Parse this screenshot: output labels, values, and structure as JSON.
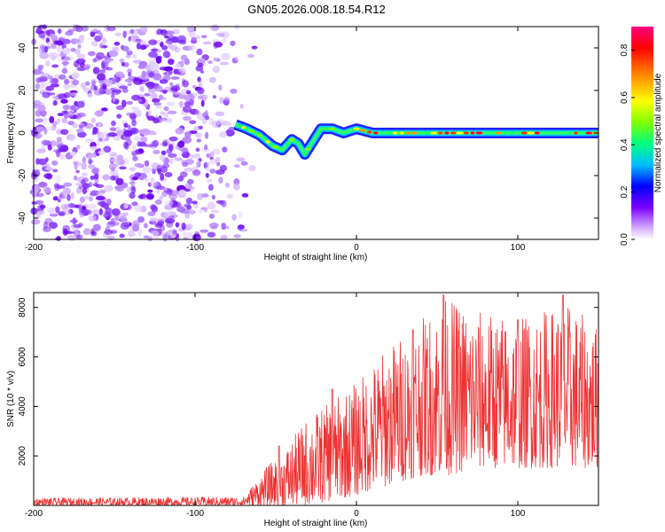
{
  "title": "GN05.2026.008.18.54.R12",
  "chart_data": [
    {
      "type": "heatmap",
      "title": "GN05.2026.008.18.54.R12",
      "xlabel": "Height of straight line (km)",
      "ylabel": "Frequency (Hz)",
      "xlim": [
        -200,
        150
      ],
      "ylim": [
        -50,
        50
      ],
      "x_ticks": [
        -200,
        -100,
        0,
        100
      ],
      "x_tick_labels": [
        "-200",
        "-100",
        "0",
        "100"
      ],
      "y_ticks": [
        -40,
        -20,
        0,
        20,
        40
      ],
      "y_tick_labels": [
        "-40",
        "-20",
        "0",
        "20",
        "40"
      ],
      "colorbar": {
        "label": "Normalized spectral amplitude",
        "range": [
          0.0,
          0.9
        ],
        "ticks": [
          0.0,
          0.2,
          0.4,
          0.6,
          0.8
        ],
        "tick_labels": [
          "0.0",
          "0.2",
          "0.4",
          "0.6",
          "0.8"
        ],
        "colors": [
          "#ffffff",
          "#d9b3ff",
          "#7a00ff",
          "#0000ff",
          "#00bfff",
          "#00ff80",
          "#80ff00",
          "#ffff00",
          "#ff8000",
          "#ff0000",
          "#ff0080"
        ]
      },
      "noise_region_x": [
        -200,
        -70
      ],
      "ridge": [
        {
          "x": -75,
          "f": 4
        },
        {
          "x": -68,
          "f": 2
        },
        {
          "x": -60,
          "f": -1
        },
        {
          "x": -52,
          "f": -6
        },
        {
          "x": -46,
          "f": -8
        },
        {
          "x": -40,
          "f": -3
        },
        {
          "x": -36,
          "f": -5
        },
        {
          "x": -32,
          "f": -10
        },
        {
          "x": -27,
          "f": -4
        },
        {
          "x": -22,
          "f": 2
        },
        {
          "x": -15,
          "f": 2
        },
        {
          "x": -8,
          "f": 0
        },
        {
          "x": 0,
          "f": 2
        },
        {
          "x": 10,
          "f": 0
        },
        {
          "x": 30,
          "f": 0
        },
        {
          "x": 60,
          "f": 0
        },
        {
          "x": 100,
          "f": 0
        },
        {
          "x": 150,
          "f": 0
        }
      ]
    },
    {
      "type": "line",
      "xlabel": "Height of straight line (km)",
      "ylabel": "SNR (10 * v/v)",
      "xlim": [
        -200,
        150
      ],
      "ylim": [
        0,
        8600
      ],
      "x_ticks": [
        -200,
        -100,
        0,
        100
      ],
      "x_tick_labels": [
        "-200",
        "-100",
        "0",
        "100"
      ],
      "y_ticks": [
        2000,
        4000,
        6000,
        8000
      ],
      "y_tick_labels": [
        "2000",
        "4000",
        "6000",
        "8000"
      ],
      "color": "#ee3333",
      "envelope": [
        {
          "x": -200,
          "low": 0,
          "high": 300
        },
        {
          "x": -70,
          "low": 0,
          "high": 350
        },
        {
          "x": -55,
          "low": 0,
          "high": 1600
        },
        {
          "x": -45,
          "low": 0,
          "high": 2200
        },
        {
          "x": -30,
          "low": 0,
          "high": 3600
        },
        {
          "x": -15,
          "low": 200,
          "high": 4200
        },
        {
          "x": 0,
          "low": 400,
          "high": 5000
        },
        {
          "x": 20,
          "low": 800,
          "high": 6500
        },
        {
          "x": 40,
          "low": 1200,
          "high": 7500
        },
        {
          "x": 55,
          "low": 1200,
          "high": 8400
        },
        {
          "x": 80,
          "low": 1500,
          "high": 7800
        },
        {
          "x": 100,
          "low": 1500,
          "high": 7600
        },
        {
          "x": 130,
          "low": 1500,
          "high": 8200
        },
        {
          "x": 150,
          "low": 1500,
          "high": 7200
        }
      ],
      "peaks": [
        {
          "x": -48,
          "y": 2400
        },
        {
          "x": -15,
          "y": 4700
        },
        {
          "x": 35,
          "y": 7100
        },
        {
          "x": 54,
          "y": 8500
        },
        {
          "x": 100,
          "y": 7500
        },
        {
          "x": 128,
          "y": 8500
        }
      ]
    }
  ]
}
